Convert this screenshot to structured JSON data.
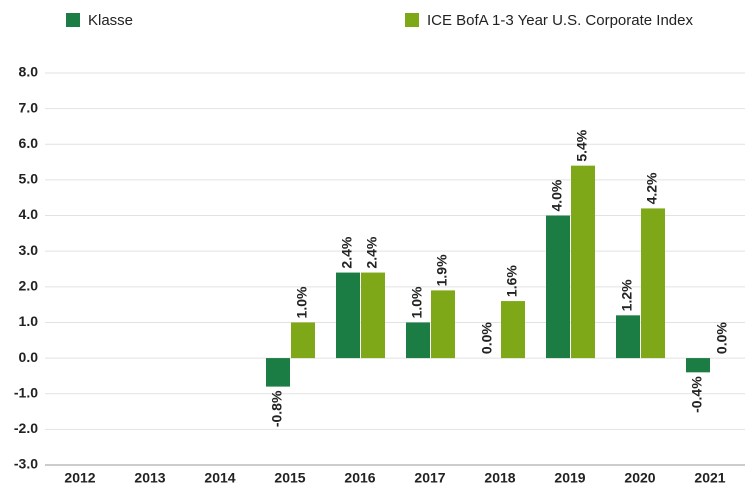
{
  "chart_data": {
    "type": "bar",
    "categories": [
      "2012",
      "2013",
      "2014",
      "2015",
      "2016",
      "2017",
      "2018",
      "2019",
      "2020",
      "2021"
    ],
    "series": [
      {
        "name": "Klasse",
        "color": "#1b7d43",
        "values": [
          null,
          null,
          null,
          -0.8,
          2.4,
          1.0,
          0.0,
          4.0,
          1.2,
          -0.4
        ],
        "value_labels": [
          null,
          null,
          null,
          "-0.8%",
          "2.4%",
          "1.0%",
          "0.0%",
          "4.0%",
          "1.2%",
          "-0.4%"
        ]
      },
      {
        "name": "ICE BofA 1-3 Year U.S. Corporate Index",
        "color": "#7ea817",
        "values": [
          null,
          null,
          null,
          1.0,
          2.4,
          1.9,
          1.6,
          5.4,
          4.2,
          0.0
        ],
        "value_labels": [
          null,
          null,
          null,
          "1.0%",
          "2.4%",
          "1.9%",
          "1.6%",
          "5.4%",
          "4.2%",
          "0.0%"
        ]
      }
    ],
    "ylim": [
      -3,
      8
    ],
    "yticks": [
      {
        "value": 8,
        "label": "8.0"
      },
      {
        "value": 7,
        "label": "7.0"
      },
      {
        "value": 6,
        "label": "6.0"
      },
      {
        "value": 5,
        "label": "5.0"
      },
      {
        "value": 4,
        "label": "4.0"
      },
      {
        "value": 3,
        "label": "3.0"
      },
      {
        "value": 2,
        "label": "2.0"
      },
      {
        "value": 1,
        "label": "1.0"
      },
      {
        "value": 0,
        "label": "0.0"
      },
      {
        "value": -1,
        "label": "-1.0"
      },
      {
        "value": -2,
        "label": "-2.0"
      },
      {
        "value": -3,
        "label": "-3.0"
      }
    ],
    "grid": true
  }
}
